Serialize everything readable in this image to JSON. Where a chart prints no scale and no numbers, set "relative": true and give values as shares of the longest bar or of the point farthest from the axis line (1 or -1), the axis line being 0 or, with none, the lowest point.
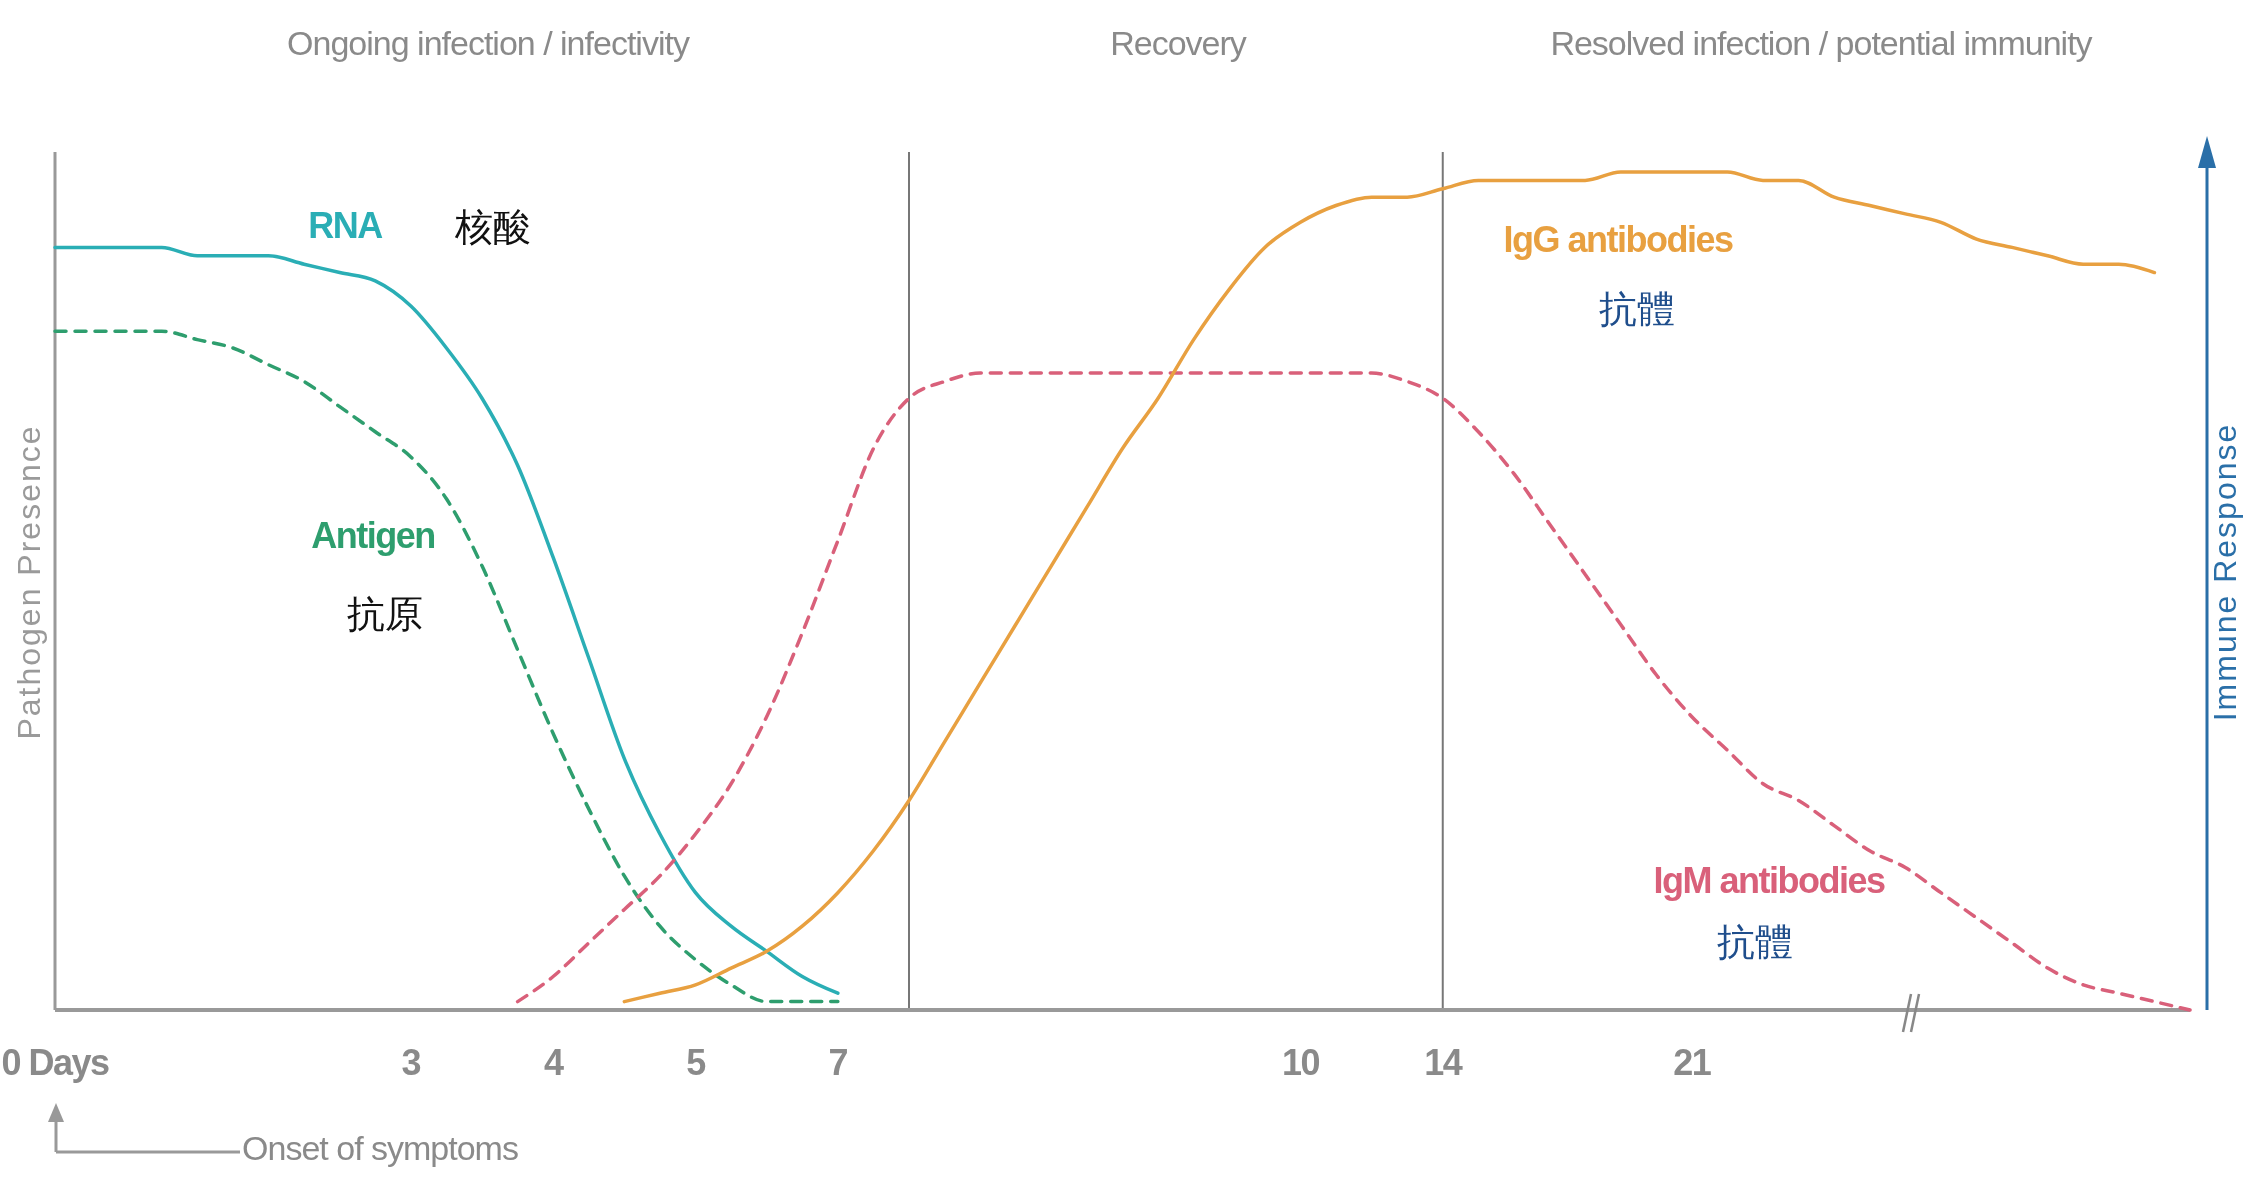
{
  "chart_data": {
    "type": "line",
    "relative": true,
    "ylabel": "Pathogen Presence",
    "y2label": "Immune Response",
    "categories": [
      "0 Days",
      null,
      null,
      null,
      null,
      null,
      null,
      null,
      null,
      null,
      "3",
      null,
      null,
      null,
      "4",
      null,
      null,
      null,
      "5",
      null,
      null,
      null,
      "7",
      null,
      null,
      null,
      null,
      null,
      null,
      null,
      null,
      null,
      null,
      null,
      null,
      "10",
      null,
      null,
      null,
      "14",
      null,
      null,
      null,
      null,
      null,
      null,
      "21",
      null,
      null,
      null,
      null,
      null,
      null,
      null,
      null,
      null,
      null,
      null,
      null,
      null,
      null
    ],
    "series": [
      {
        "name": "RNA",
        "color": "#2aaeb5",
        "line_style": "solid",
        "values": [
          0.91,
          0.91,
          0.91,
          0.91,
          0.9,
          0.9,
          0.9,
          0.89,
          0.88,
          0.87,
          0.84,
          0.79,
          0.73,
          0.65,
          0.54,
          0.42,
          0.3,
          0.21,
          0.14,
          0.1,
          0.07,
          0.04,
          0.02,
          null,
          null,
          null,
          null,
          null,
          null,
          null,
          null,
          null,
          null,
          null,
          null,
          null,
          null,
          null,
          null,
          null,
          null,
          null,
          null,
          null,
          null,
          null,
          null,
          null,
          null,
          null,
          null,
          null,
          null,
          null,
          null,
          null,
          null,
          null,
          null,
          null,
          null
        ]
      },
      {
        "name": "Antigen",
        "color": "#2e9e6e",
        "line_style": "dashed",
        "values": [
          0.81,
          0.81,
          0.81,
          0.81,
          0.8,
          0.79,
          0.77,
          0.75,
          0.72,
          0.69,
          0.66,
          0.61,
          0.53,
          0.43,
          0.33,
          0.24,
          0.16,
          0.1,
          0.06,
          0.03,
          0.01,
          0.01,
          0.01,
          null,
          null,
          null,
          null,
          null,
          null,
          null,
          null,
          null,
          null,
          null,
          null,
          null,
          null,
          null,
          null,
          null,
          null,
          null,
          null,
          null,
          null,
          null,
          null,
          null,
          null,
          null,
          null,
          null,
          null,
          null,
          null,
          null,
          null,
          null,
          null,
          null,
          null
        ]
      },
      {
        "name": "IgM antibodies",
        "color": "#d9607a",
        "line_style": "dashed",
        "values": [
          null,
          null,
          null,
          null,
          null,
          null,
          null,
          null,
          null,
          null,
          null,
          null,
          null,
          0.01,
          0.04,
          0.08,
          0.12,
          0.16,
          0.21,
          0.27,
          0.35,
          0.45,
          0.56,
          0.67,
          0.73,
          0.75,
          0.76,
          0.76,
          0.76,
          0.76,
          0.76,
          0.76,
          0.76,
          0.76,
          0.76,
          0.76,
          0.76,
          0.76,
          0.75,
          0.73,
          0.69,
          0.64,
          0.58,
          0.52,
          0.46,
          0.4,
          0.35,
          0.31,
          0.27,
          0.25,
          0.22,
          0.19,
          0.17,
          0.14,
          0.11,
          0.08,
          0.05,
          0.03,
          0.02,
          0.01,
          0.0
        ]
      },
      {
        "name": "IgG antibodies",
        "color": "#e8a040",
        "line_style": "solid",
        "values": [
          null,
          null,
          null,
          null,
          null,
          null,
          null,
          null,
          null,
          null,
          null,
          null,
          null,
          null,
          null,
          null,
          0.01,
          0.02,
          0.03,
          0.05,
          0.07,
          0.1,
          0.14,
          0.19,
          0.25,
          0.32,
          0.39,
          0.46,
          0.53,
          0.6,
          0.67,
          0.73,
          0.8,
          0.86,
          0.91,
          0.94,
          0.96,
          0.97,
          0.97,
          0.98,
          0.99,
          0.99,
          0.99,
          0.99,
          1.0,
          1.0,
          1.0,
          1.0,
          0.99,
          0.99,
          0.97,
          0.96,
          0.95,
          0.94,
          0.92,
          0.91,
          0.9,
          0.89,
          0.89,
          0.88,
          null
        ]
      }
    ],
    "annotations": [
      "Ongoing infection / infectivity",
      "Recovery",
      "Resolved infection / potential immunity",
      "Onset of symptoms",
      "核酸",
      "抗原",
      "抗體",
      "抗體"
    ]
  }
}
